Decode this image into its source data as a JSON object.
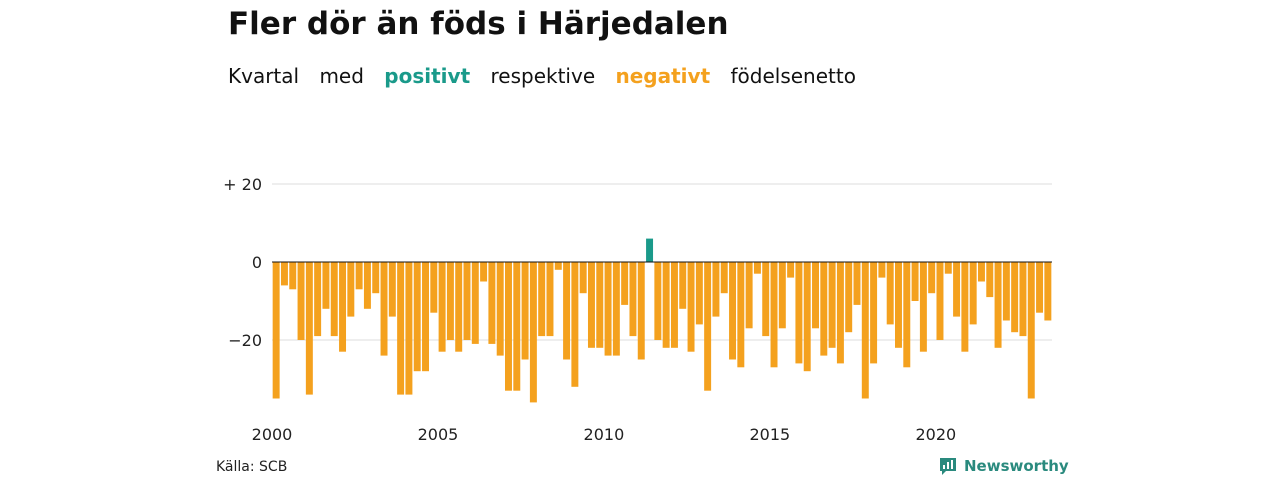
{
  "title": "Fler dör än föds i Härjedalen",
  "subtitle": {
    "w1": "Kvartal",
    "w2": "med",
    "pos": "positivt",
    "w3": "respektive",
    "neg": "negativt",
    "w4": "födelsenetto"
  },
  "source": "Källa: SCB",
  "brand": "Newsworthy",
  "colors": {
    "positive": "#1a9a8a",
    "negative": "#f4a11e",
    "brand": "#2a8a7e"
  },
  "chart_data": {
    "type": "bar",
    "ylim": [
      -37,
      20
    ],
    "yticks": [
      20,
      0,
      -20
    ],
    "ytick_labels": [
      "+ 20",
      "0",
      "−20"
    ],
    "xticks": [
      {
        "label": "2000",
        "index": 0
      },
      {
        "label": "2005",
        "index": 20
      },
      {
        "label": "2010",
        "index": 40
      },
      {
        "label": "2015",
        "index": 60
      },
      {
        "label": "2020",
        "index": 80
      }
    ],
    "start": "2000Q1",
    "values": [
      -35,
      -6,
      -7,
      -20,
      -34,
      -19,
      -12,
      -19,
      -23,
      -14,
      -7,
      -12,
      -8,
      -24,
      -14,
      -34,
      -34,
      -28,
      -28,
      -13,
      -23,
      -20,
      -23,
      -20,
      -21,
      -5,
      -21,
      -24,
      -33,
      -33,
      -25,
      -36,
      -19,
      -19,
      -2,
      -25,
      -32,
      -8,
      -22,
      -22,
      -24,
      -24,
      -11,
      -19,
      -25,
      6,
      -20,
      -22,
      -22,
      -12,
      -23,
      -16,
      -33,
      -14,
      -8,
      -25,
      -27,
      -17,
      -3,
      -19,
      -27,
      -17,
      -4,
      -26,
      -28,
      -17,
      -24,
      -22,
      -26,
      -18,
      -11,
      -35,
      -26,
      -4,
      -16,
      -22,
      -27,
      -10,
      -23,
      -8,
      -20,
      -3,
      -14,
      -23,
      -16,
      -5,
      -9,
      -22,
      -15,
      -18,
      -19,
      -35,
      -13,
      -15
    ]
  }
}
